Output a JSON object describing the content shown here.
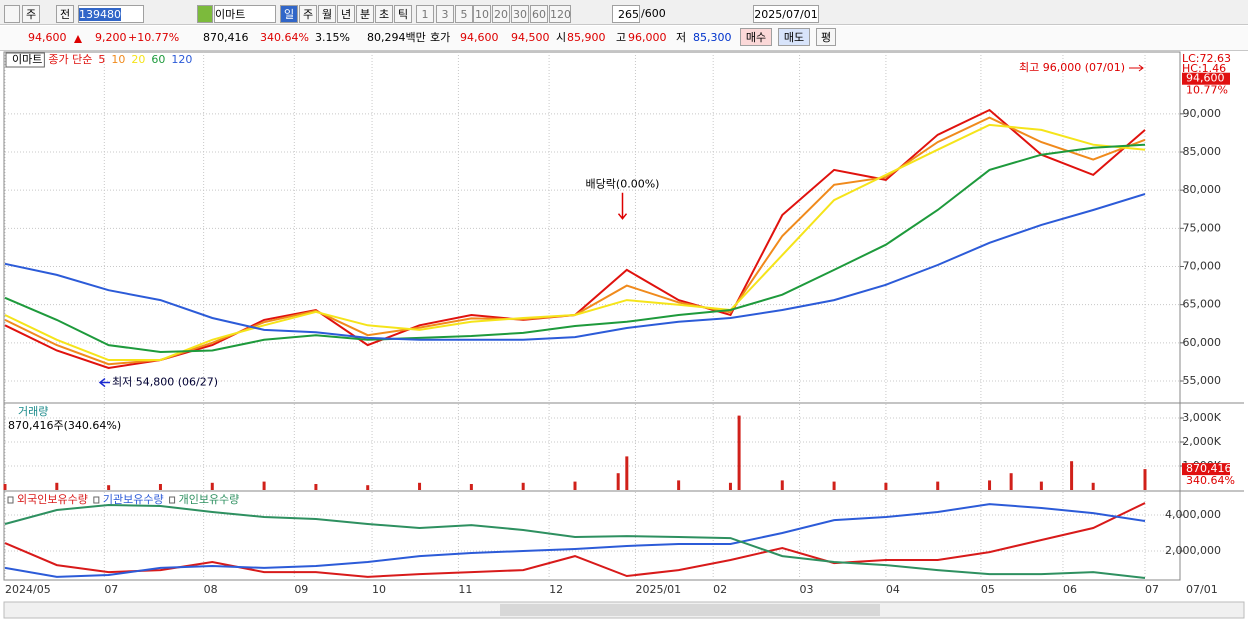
{
  "toolbar": {
    "period": "주",
    "prev": "전",
    "code": "139480",
    "name": "이마트",
    "periods": [
      "일",
      "주",
      "월",
      "년",
      "분",
      "초",
      "틱"
    ],
    "intervals": [
      "1",
      "3",
      "5",
      "10",
      "20",
      "30",
      "60",
      "120"
    ],
    "count": "265",
    "count_max": "/600",
    "date": "2025/07/01"
  },
  "quote": {
    "price": "94,600",
    "change": "9,200",
    "change_rate": "+10.77%",
    "volume": "870,416",
    "volume_rate": "340.64%",
    "turnover": "3.15%",
    "amount": "80,294백만",
    "bid_label": "호가",
    "ask": "94,600",
    "bid": "94,500",
    "open_label": "시",
    "open": "85,900",
    "high_label": "고",
    "high": "96,000",
    "low_label": "저",
    "low": "85,300",
    "buy": "매수",
    "sell": "매도",
    "avg": "평"
  },
  "chart_data": [
    {
      "type": "line",
      "title": "이마트",
      "legend_prefix": "종가 단순",
      "x": [
        0,
        12,
        24,
        36,
        48,
        60,
        72,
        84,
        96,
        108,
        120,
        132,
        144,
        156,
        168,
        180,
        192,
        204,
        216,
        228,
        240,
        252,
        264
      ],
      "xlim": [
        0,
        264
      ],
      "xticks": [
        {
          "value": 0,
          "label": "2024/05"
        },
        {
          "value": 23,
          "label": "07"
        },
        {
          "value": 46,
          "label": "08"
        },
        {
          "value": 67,
          "label": "09"
        },
        {
          "value": 85,
          "label": "10"
        },
        {
          "value": 105,
          "label": "11"
        },
        {
          "value": 126,
          "label": "12"
        },
        {
          "value": 146,
          "label": "2025/01"
        },
        {
          "value": 164,
          "label": "02"
        },
        {
          "value": 184,
          "label": "03"
        },
        {
          "value": 204,
          "label": "04"
        },
        {
          "value": 226,
          "label": "05"
        },
        {
          "value": 245,
          "label": "06"
        },
        {
          "value": 264,
          "label": "07"
        }
      ],
      "cursor_label": "07/01",
      "ylim": [
        52250,
        98100
      ],
      "yticks": [
        {
          "value": 55000,
          "label": "55,000"
        },
        {
          "value": 60000,
          "label": "60,000"
        },
        {
          "value": 65000,
          "label": "65,000"
        },
        {
          "value": 70000,
          "label": "70,000"
        },
        {
          "value": 75000,
          "label": "75,000"
        },
        {
          "value": 80000,
          "label": "80,000"
        },
        {
          "value": 85000,
          "label": "85,000"
        },
        {
          "value": 90000,
          "label": "90,000"
        }
      ],
      "grid": true,
      "series": [
        {
          "name": "5",
          "color": "#e0120e",
          "values": [
            62300,
            59000,
            56700,
            57750,
            59700,
            63000,
            64300,
            59700,
            62300,
            63650,
            63000,
            63650,
            69550,
            65600,
            63650,
            76750,
            82650,
            81350,
            87250,
            90500,
            84650,
            82000,
            87900
          ]
        },
        {
          "name": "10",
          "color": "#f08a1c",
          "values": [
            63000,
            59700,
            57200,
            57750,
            60000,
            62700,
            64200,
            61000,
            62000,
            63200,
            63100,
            63650,
            67500,
            65300,
            64000,
            74000,
            80700,
            81700,
            86300,
            89500,
            86300,
            84000,
            86600
          ]
        },
        {
          "name": "20",
          "color": "#f5e41a",
          "values": [
            63650,
            60400,
            57750,
            57750,
            60400,
            62300,
            64050,
            62300,
            61700,
            62750,
            63250,
            63650,
            65600,
            65000,
            64300,
            71500,
            78700,
            82000,
            85300,
            88550,
            87900,
            85950,
            85300
          ]
        },
        {
          "name": "60",
          "color": "#1e9a3c",
          "values": [
            65900,
            63000,
            59700,
            58800,
            59000,
            60400,
            61000,
            60400,
            60650,
            60900,
            61300,
            62200,
            62750,
            63650,
            64300,
            66300,
            69550,
            72850,
            77400,
            82650,
            84650,
            85550,
            85950
          ]
        },
        {
          "name": "120",
          "color": "#2c5bd8",
          "values": [
            70350,
            68900,
            66900,
            65600,
            63250,
            61700,
            61400,
            60650,
            60400,
            60400,
            60400,
            60750,
            61950,
            62750,
            63250,
            64300,
            65600,
            67600,
            70200,
            73100,
            75450,
            77400,
            79500
          ]
        }
      ],
      "annotations": [
        {
          "text": "최고 96,000 (07/01)",
          "x": 264,
          "y": 96000
        },
        {
          "text": "최저 54,800 (06/27)",
          "x": 22,
          "y": 54800
        },
        {
          "text": "배당락(0.00%)",
          "x": 143,
          "y": 76000
        }
      ],
      "right_labels": [
        "LC:72.63",
        "HC:1.46"
      ],
      "last_price": {
        "value": 94600,
        "label": "94,600"
      },
      "change_label": "10.77%"
    },
    {
      "type": "bar",
      "title": "거래량",
      "subtitle": "870,416주(340.64%)",
      "color": "#d0201a",
      "x": [
        0,
        12,
        24,
        36,
        48,
        60,
        72,
        84,
        96,
        108,
        120,
        132,
        142,
        144,
        156,
        168,
        170,
        180,
        192,
        204,
        216,
        228,
        233,
        240,
        247,
        252,
        264
      ],
      "xlim": [
        0,
        264
      ],
      "values": [
        250000,
        300000,
        200000,
        250000,
        300000,
        350000,
        250000,
        200000,
        300000,
        250000,
        300000,
        350000,
        700000,
        1400000,
        400000,
        300000,
        3100000,
        400000,
        350000,
        300000,
        350000,
        400000,
        700000,
        350000,
        1200000,
        300000,
        870416
      ],
      "ylim": [
        0,
        3583000
      ],
      "yticks": [
        {
          "value": 1000000,
          "label": "1,000K"
        },
        {
          "value": 2000000,
          "label": "2,000K"
        },
        {
          "value": 3000000,
          "label": "3,000K"
        }
      ],
      "grid": true,
      "last_value": {
        "value": 870416,
        "label": "870,416"
      },
      "last_rate": "340.64%"
    },
    {
      "type": "line",
      "x": [
        0,
        12,
        24,
        36,
        48,
        60,
        72,
        84,
        96,
        108,
        120,
        132,
        144,
        156,
        168,
        180,
        192,
        204,
        216,
        228,
        240,
        252,
        264
      ],
      "xlim": [
        0,
        264
      ],
      "ylim": [
        390000,
        5280000
      ],
      "yticks": [
        {
          "value": 2000000,
          "label": "2,000,000"
        },
        {
          "value": 4000000,
          "label": "4,000,000"
        }
      ],
      "grid": true,
      "series": [
        {
          "name": "외국인보유수량",
          "color": "#d81a1a",
          "values": [
            2440000,
            1220000,
            830000,
            940000,
            1390000,
            830000,
            830000,
            560000,
            720000,
            830000,
            940000,
            1720000,
            610000,
            940000,
            1500000,
            2170000,
            1330000,
            1500000,
            1500000,
            1940000,
            2610000,
            3280000,
            4670000
          ]
        },
        {
          "name": "기관보유수량",
          "color": "#2c5bd8",
          "values": [
            1060000,
            560000,
            670000,
            1060000,
            1170000,
            1060000,
            1170000,
            1390000,
            1720000,
            1890000,
            2000000,
            2110000,
            2280000,
            2390000,
            2390000,
            3000000,
            3720000,
            3890000,
            4170000,
            4610000,
            4390000,
            4110000,
            3670000
          ]
        },
        {
          "name": "개인보유수량",
          "color": "#2e9060",
          "values": [
            3500000,
            4280000,
            4560000,
            4500000,
            4170000,
            3890000,
            3780000,
            3500000,
            3280000,
            3440000,
            3170000,
            2780000,
            2830000,
            2780000,
            2720000,
            1720000,
            1390000,
            1220000,
            940000,
            720000,
            720000,
            830000,
            500000
          ]
        }
      ]
    }
  ]
}
